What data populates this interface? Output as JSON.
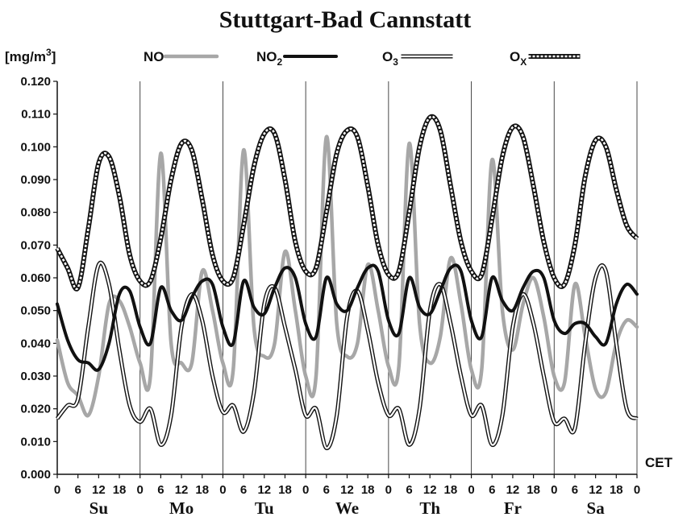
{
  "chart_data": {
    "type": "line",
    "title": "Stuttgart-Bad Cannstatt",
    "ylabel": "[mg/m",
    "ylabel_sup": "3",
    "ylabel_close": "]",
    "xlabel": "CET",
    "ylim": [
      0,
      0.12
    ],
    "yticks": [
      "0.000",
      "0.010",
      "0.020",
      "0.030",
      "0.040",
      "0.050",
      "0.060",
      "0.070",
      "0.080",
      "0.090",
      "0.100",
      "0.110",
      "0.120"
    ],
    "xticks_per_day": [
      "0",
      "6",
      "12",
      "18"
    ],
    "xtick_final": "0",
    "days": [
      "Su",
      "Mo",
      "Tu",
      "We",
      "Th",
      "Fr",
      "Sa"
    ],
    "x_hours": [
      0,
      3,
      6,
      9,
      12,
      15,
      18,
      21,
      24,
      27,
      30,
      33,
      36,
      39,
      42,
      45,
      48,
      51,
      54,
      57,
      60,
      63,
      66,
      69,
      72,
      75,
      78,
      81,
      84,
      87,
      90,
      93,
      96,
      99,
      102,
      105,
      108,
      111,
      114,
      117,
      120,
      123,
      126,
      129,
      132,
      135,
      138,
      141,
      144,
      147,
      150,
      153,
      156,
      159,
      162,
      165,
      168
    ],
    "series": [
      {
        "name": "NO",
        "legend_main": "NO",
        "legend_sub": "",
        "style": "gray",
        "values": [
          0.041,
          0.028,
          0.024,
          0.018,
          0.03,
          0.052,
          0.053,
          0.045,
          0.034,
          0.03,
          0.098,
          0.04,
          0.034,
          0.034,
          0.062,
          0.05,
          0.034,
          0.032,
          0.099,
          0.045,
          0.036,
          0.04,
          0.068,
          0.05,
          0.03,
          0.03,
          0.103,
          0.046,
          0.036,
          0.04,
          0.064,
          0.05,
          0.033,
          0.033,
          0.101,
          0.046,
          0.034,
          0.042,
          0.066,
          0.052,
          0.032,
          0.032,
          0.096,
          0.05,
          0.038,
          0.052,
          0.06,
          0.048,
          0.03,
          0.028,
          0.058,
          0.042,
          0.026,
          0.025,
          0.04,
          0.047,
          0.045
        ]
      },
      {
        "name": "NO2",
        "legend_main": "NO",
        "legend_sub": "2",
        "style": "black",
        "values": [
          0.052,
          0.041,
          0.035,
          0.034,
          0.032,
          0.04,
          0.055,
          0.056,
          0.045,
          0.04,
          0.057,
          0.05,
          0.047,
          0.054,
          0.059,
          0.058,
          0.045,
          0.04,
          0.059,
          0.051,
          0.049,
          0.057,
          0.063,
          0.06,
          0.046,
          0.042,
          0.06,
          0.052,
          0.05,
          0.057,
          0.063,
          0.062,
          0.047,
          0.043,
          0.06,
          0.051,
          0.049,
          0.056,
          0.063,
          0.062,
          0.047,
          0.042,
          0.06,
          0.053,
          0.05,
          0.057,
          0.062,
          0.06,
          0.047,
          0.043,
          0.046,
          0.046,
          0.042,
          0.04,
          0.052,
          0.058,
          0.055
        ]
      },
      {
        "name": "O3",
        "legend_main": "O",
        "legend_sub": "3",
        "style": "double",
        "values": [
          0.017,
          0.021,
          0.023,
          0.045,
          0.064,
          0.058,
          0.038,
          0.021,
          0.016,
          0.02,
          0.009,
          0.018,
          0.045,
          0.055,
          0.047,
          0.03,
          0.019,
          0.021,
          0.013,
          0.025,
          0.052,
          0.057,
          0.045,
          0.032,
          0.018,
          0.02,
          0.008,
          0.018,
          0.048,
          0.056,
          0.044,
          0.028,
          0.018,
          0.02,
          0.009,
          0.02,
          0.05,
          0.058,
          0.046,
          0.03,
          0.018,
          0.021,
          0.009,
          0.018,
          0.045,
          0.055,
          0.046,
          0.03,
          0.016,
          0.017,
          0.014,
          0.04,
          0.06,
          0.062,
          0.04,
          0.02,
          0.017
        ]
      },
      {
        "name": "Ox",
        "legend_main": "O",
        "legend_sub": "X",
        "style": "dashed",
        "values": [
          0.069,
          0.063,
          0.057,
          0.075,
          0.095,
          0.097,
          0.085,
          0.067,
          0.059,
          0.059,
          0.072,
          0.09,
          0.101,
          0.099,
          0.084,
          0.067,
          0.059,
          0.06,
          0.076,
          0.094,
          0.104,
          0.104,
          0.09,
          0.071,
          0.062,
          0.063,
          0.08,
          0.098,
          0.105,
          0.103,
          0.088,
          0.07,
          0.061,
          0.062,
          0.08,
          0.1,
          0.109,
          0.105,
          0.088,
          0.071,
          0.062,
          0.061,
          0.078,
          0.097,
          0.106,
          0.103,
          0.088,
          0.071,
          0.06,
          0.058,
          0.07,
          0.091,
          0.102,
          0.1,
          0.087,
          0.076,
          0.072
        ]
      }
    ]
  }
}
